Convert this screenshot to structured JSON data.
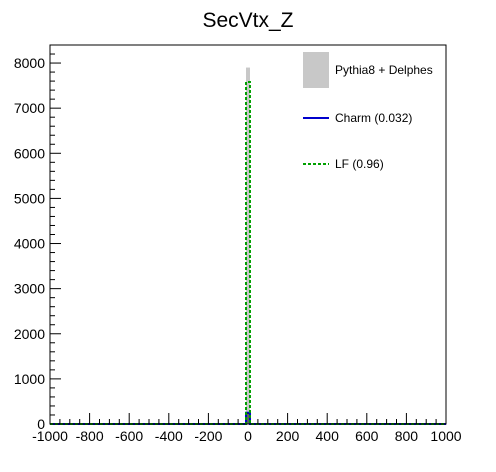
{
  "chart_data": {
    "type": "histogram",
    "title": "SecVtx_Z",
    "xlabel": "",
    "ylabel": "",
    "xlim": [
      -1000,
      1000
    ],
    "ylim": [
      0,
      8400
    ],
    "x_ticks": [
      "-1000",
      "-800",
      "-600",
      "-400",
      "-200",
      "0",
      "200",
      "400",
      "600",
      "800",
      "1000"
    ],
    "y_ticks": [
      "0",
      "1000",
      "2000",
      "3000",
      "4000",
      "5000",
      "6000",
      "7000",
      "8000"
    ],
    "bin_width": 20,
    "grid": false,
    "legend_position": "top-right",
    "series": [
      {
        "name": "Pythia8 + Delphes",
        "style": "filled",
        "color": "#c8c8c8",
        "bins": [
          {
            "x0": -10,
            "x1": 10,
            "y": 7900
          }
        ]
      },
      {
        "name": "Charm (0.032)",
        "style": "solid",
        "color": "#0000cc",
        "bins": [
          {
            "x0": -10,
            "x1": 10,
            "y": 250
          }
        ]
      },
      {
        "name": "LF (0.96)",
        "style": "dashed",
        "color": "#00a000",
        "bins": [
          {
            "x0": -10,
            "x1": 10,
            "y": 7580
          }
        ]
      }
    ]
  }
}
